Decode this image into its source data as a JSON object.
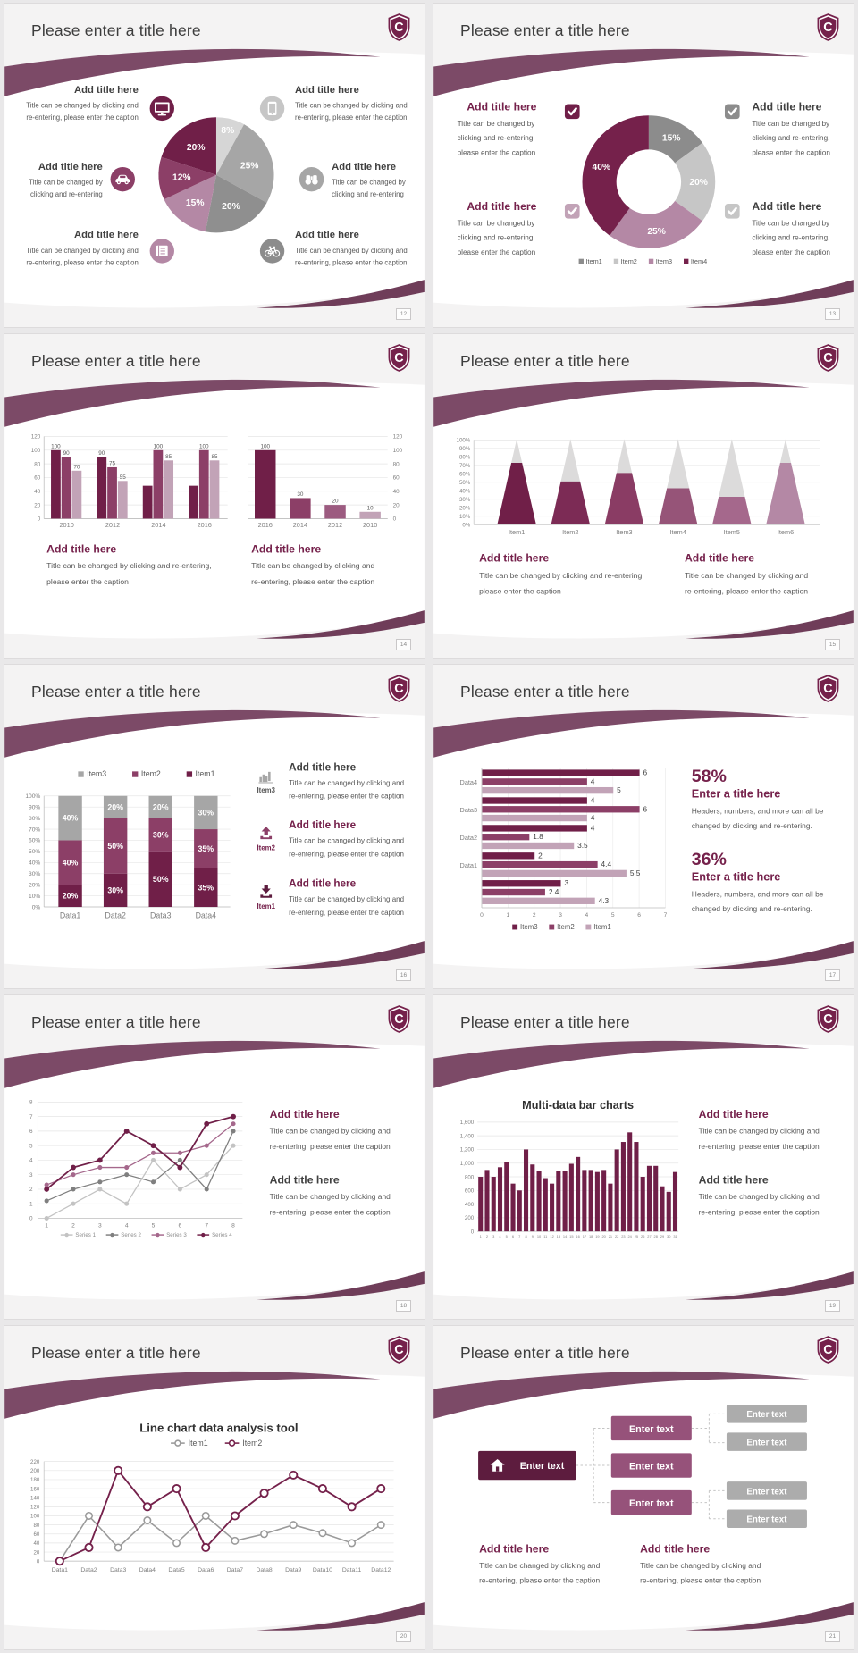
{
  "colors": {
    "accent_darkest": "#5d1c3e",
    "accent_dark": "#701f48",
    "accent": "#8c3f67",
    "accent_mid": "#a5688c",
    "accent_light": "#b488a5",
    "accent_xlight": "#c2a3b7",
    "heading_maroon": "#75214b",
    "swoosh_top": "#7c4a67",
    "swoosh_bottom": "#6f3d59",
    "gray_dark": "#8c8c8c",
    "gray": "#a6a6a6",
    "gray_light": "#c6c6c6",
    "gray_xlight": "#d6d6d6",
    "diagram_gray_box": "#acacac",
    "title_text": "#3d3d3d",
    "heading_dark": "#404040",
    "caption_text": "#595959",
    "axis_text": "#7f7f7f"
  },
  "logo": {
    "letter": "C"
  },
  "slides": [
    {
      "title": "Please enter a title here",
      "page_number": "12",
      "type": "pie-callouts",
      "chart": "pie12",
      "callouts": [
        {
          "heading": "Add title here",
          "icon": "monitor-icon",
          "caption": [
            "Title can be changed by clicking and",
            "re-entering, please enter the caption"
          ]
        },
        {
          "heading": "Add title here",
          "icon": "car-icon",
          "caption": [
            "Title can be changed by",
            "clicking and re-entering"
          ]
        },
        {
          "heading": "Add title here",
          "icon": "book-icon",
          "caption": [
            "Title can be changed by clicking and",
            "re-entering, please enter the caption"
          ]
        },
        {
          "heading": "Add title here",
          "icon": "smartphone-icon",
          "caption": [
            "Title can be changed by clicking and",
            "re-entering, please enter the caption"
          ]
        },
        {
          "heading": "Add title here",
          "icon": "binoculars-icon",
          "caption": [
            "Title can be changed by",
            "clicking and re-entering"
          ]
        },
        {
          "heading": "Add title here",
          "icon": "bicycle-icon",
          "caption": [
            "Title can be changed by clicking and",
            "re-entering, please enter the caption"
          ]
        }
      ]
    },
    {
      "title": "Please enter a title here",
      "page_number": "13",
      "type": "donut-callouts",
      "chart": "donut13",
      "callouts": [
        {
          "heading": "Add title here",
          "side": "left",
          "checkbox_color": "#701f48",
          "caption": [
            "Title can be changed by",
            "clicking and re-entering,",
            "please enter the caption"
          ]
        },
        {
          "heading": "Add title here",
          "side": "left",
          "checkbox_color": "#c2a3b7",
          "caption": [
            "Title can be changed by",
            "clicking and re-entering,",
            "please enter the caption"
          ]
        },
        {
          "heading": "Add title here",
          "side": "right",
          "checkbox_color": "#8c8c8c",
          "caption": [
            "Title can be changed by",
            "clicking and re-entering,",
            "please enter the caption"
          ]
        },
        {
          "heading": "Add title here",
          "side": "right",
          "checkbox_color": "#c6c6c6",
          "caption": [
            "Title can be changed by",
            "clicking and re-entering,",
            "please enter the caption"
          ]
        }
      ]
    },
    {
      "title": "Please enter a title here",
      "page_number": "14",
      "type": "two-bars",
      "charts": [
        "bars14a",
        "bars14b"
      ],
      "blocks": [
        {
          "heading": "Add title here",
          "caption": [
            "Title can be changed by clicking and re-entering,",
            "please enter the caption"
          ]
        },
        {
          "heading": "Add title here",
          "caption": [
            "Title can be changed by clicking and",
            "re-entering, please enter the caption"
          ]
        }
      ]
    },
    {
      "title": "Please enter a title here",
      "page_number": "15",
      "type": "cones",
      "chart": "cones15",
      "blocks": [
        {
          "heading": "Add title here",
          "caption": [
            "Title can be changed by clicking and re-entering,",
            "please enter the caption"
          ]
        },
        {
          "heading": "Add title here",
          "caption": [
            "Title can be changed by clicking and",
            "re-entering, please enter the caption"
          ]
        }
      ]
    },
    {
      "title": "Please enter a title here",
      "page_number": "16",
      "type": "stacked",
      "chart": "stack16",
      "blocks": [
        {
          "item": "Item3",
          "icon": "bar-chart-icon",
          "heading": "Add title here",
          "heading_color": "dark",
          "caption": [
            "Title can be changed by clicking and",
            "re-entering, please enter the caption"
          ]
        },
        {
          "item": "Item2",
          "icon": "upload-icon",
          "heading": "Add title here",
          "heading_color": "maroon",
          "caption": [
            "Title can be changed by clicking and",
            "re-entering, please enter the caption"
          ]
        },
        {
          "item": "Item1",
          "icon": "download-icon",
          "heading": "Add title here",
          "heading_color": "maroon",
          "caption": [
            "Title can be changed by clicking and",
            "re-entering, please enter the caption"
          ]
        }
      ]
    },
    {
      "title": "Please enter a title here",
      "page_number": "17",
      "type": "hbars",
      "chart": "hbar17",
      "stats": [
        {
          "value": "58%",
          "heading": "Enter a title here",
          "caption": [
            "Headers, numbers, and more can all be",
            "changed by clicking and re-entering."
          ]
        },
        {
          "value": "36%",
          "heading": "Enter a title here",
          "caption": [
            "Headers, numbers, and more can all be",
            "changed by clicking and re-entering."
          ]
        }
      ]
    },
    {
      "title": "Please enter a title here",
      "page_number": "18",
      "type": "lines",
      "chart": "line18",
      "blocks": [
        {
          "heading": "Add title here",
          "heading_color": "maroon",
          "caption": [
            "Title can be changed by clicking and",
            "re-entering, please enter the caption"
          ]
        },
        {
          "heading": "Add title here",
          "heading_color": "dark",
          "caption": [
            "Title can be changed by clicking and",
            "re-entering, please enter the caption"
          ]
        }
      ]
    },
    {
      "title": "Please enter a title here",
      "page_number": "19",
      "type": "multibar",
      "chart": "bars19",
      "blocks": [
        {
          "heading": "Add title here",
          "heading_color": "maroon",
          "caption": [
            "Title can be changed by clicking and",
            "re-entering, please enter the caption"
          ]
        },
        {
          "heading": "Add title here",
          "heading_color": "dark",
          "caption": [
            "Title can be changed by clicking and",
            "re-entering, please enter the caption"
          ]
        }
      ]
    },
    {
      "title": "Please enter a title here",
      "page_number": "20",
      "type": "bigline",
      "chart": "line20"
    },
    {
      "title": "Please enter a title here",
      "page_number": "21",
      "type": "diagram",
      "diagram": {
        "root": {
          "label": "Enter text",
          "icon": "home-icon"
        },
        "mid": [
          {
            "label": "Enter text"
          },
          {
            "label": "Enter text"
          },
          {
            "label": "Enter text"
          }
        ],
        "leaves": [
          {
            "label": "Enter text"
          },
          {
            "label": "Enter text"
          },
          {
            "label": "Enter text"
          },
          {
            "label": "Enter text"
          }
        ]
      },
      "blocks": [
        {
          "heading": "Add title here",
          "caption": [
            "Title can be changed by clicking and",
            "re-entering, please enter the caption"
          ]
        },
        {
          "heading": "Add title here",
          "caption": [
            "Title can be changed by clicking and",
            "re-entering, please enter the caption"
          ]
        }
      ]
    }
  ],
  "chart_data": [
    {
      "id": "pie12",
      "type": "pie",
      "values": [
        8,
        25,
        20,
        15,
        12,
        20
      ],
      "labels": [
        "8%",
        "25%",
        "20%",
        "15%",
        "12%",
        "20%"
      ],
      "colors": [
        "#d6d6d6",
        "#a6a6a6",
        "#8f8f8f",
        "#b488a5",
        "#8c3f67",
        "#701f48"
      ],
      "start": "top",
      "clockwise": true
    },
    {
      "id": "donut13",
      "type": "pie",
      "donut": true,
      "values": [
        15,
        20,
        25,
        40
      ],
      "labels": [
        "15%",
        "20%",
        "25%",
        "40%"
      ],
      "colors": [
        "#8c8c8c",
        "#c6c6c6",
        "#b488a5",
        "#75214b"
      ],
      "legend": [
        "Item1",
        "Item2",
        "Item3",
        "Item4"
      ],
      "legend_position": "bottom"
    },
    {
      "id": "bars14a",
      "type": "bar",
      "categories": [
        "2010",
        "2012",
        "2014",
        "2016"
      ],
      "series": [
        {
          "name": "Series1",
          "color": "#701f48",
          "values": [
            100,
            90,
            48,
            48
          ],
          "labels": [
            "100",
            "90",
            "",
            ""
          ]
        },
        {
          "name": "Series2",
          "color": "#8c3f67",
          "values": [
            90,
            75,
            100,
            100
          ],
          "labels": [
            "90",
            "75",
            "100",
            "100"
          ]
        },
        {
          "name": "Series3",
          "color": "#c2a3b7",
          "values": [
            70,
            55,
            85,
            85
          ],
          "labels": [
            "70",
            "55",
            "85",
            "85"
          ]
        }
      ],
      "ylim": [
        0,
        120
      ],
      "ytick_step": 20,
      "axis_side": "left",
      "grid": true
    },
    {
      "id": "bars14b",
      "type": "bar",
      "categories": [
        "2016",
        "2014",
        "2012",
        "2010"
      ],
      "series": [
        {
          "name": "Series1",
          "colors": [
            "#701f48",
            "#8c3f67",
            "#9c5b80",
            "#c2a3b7"
          ],
          "values": [
            100,
            30,
            20,
            10
          ],
          "labels": [
            "100",
            "30",
            "20",
            "10"
          ]
        }
      ],
      "ylim": [
        0,
        120
      ],
      "ytick_step": 20,
      "axis_side": "right",
      "grid": true
    },
    {
      "id": "cones15",
      "type": "cone",
      "categories": [
        "Item1",
        "Item2",
        "Item3",
        "Item4",
        "Item5",
        "Item6"
      ],
      "values": [
        72,
        50,
        60,
        42,
        32,
        72
      ],
      "colors": [
        "#701f48",
        "#7c2b55",
        "#8a3c64",
        "#965478",
        "#a5688c",
        "#b488a5"
      ],
      "unfilled_color": "#dcdbdb",
      "ylim": [
        0,
        100
      ],
      "ytick_step": 10,
      "grid": true
    },
    {
      "id": "stack16",
      "type": "stacked-bar",
      "categories": [
        "Data1",
        "Data2",
        "Data3",
        "Data4"
      ],
      "series": [
        {
          "name": "Item1",
          "color": "#701f48",
          "values": [
            20,
            30,
            50,
            35
          ]
        },
        {
          "name": "Item2",
          "color": "#8c3f67",
          "values": [
            40,
            50,
            30,
            35
          ]
        },
        {
          "name": "Item3",
          "color": "#a6a6a6",
          "values": [
            40,
            20,
            20,
            30
          ]
        }
      ],
      "legend_order": [
        "Item3",
        "Item2",
        "Item1"
      ],
      "ylim": [
        0,
        100
      ],
      "ytick_step": 10,
      "grid": true
    },
    {
      "id": "hbar17",
      "type": "hbar",
      "groups": [
        {
          "label": "Data4",
          "values": [
            6,
            4,
            5
          ]
        },
        {
          "label": "Data3",
          "values": [
            4,
            6,
            4
          ]
        },
        {
          "label": "Data2",
          "values": [
            4,
            1.8,
            3.5
          ]
        },
        {
          "label": "Data1",
          "values": [
            2,
            4.4,
            5.5
          ]
        },
        {
          "label": "",
          "values": [
            3,
            2.4,
            4.3
          ]
        }
      ],
      "series": [
        "Item3",
        "Item2",
        "Item1"
      ],
      "series_colors": [
        "#701f48",
        "#8c3f67",
        "#c2a3b7"
      ],
      "xlim": [
        0,
        7
      ],
      "xtick_step": 1,
      "grid": true,
      "legend_position": "bottom"
    },
    {
      "id": "line18",
      "type": "line",
      "x": [
        1,
        2,
        3,
        4,
        5,
        6,
        7,
        8
      ],
      "series": [
        {
          "name": "Series 1",
          "color": "#c3c3c3",
          "values": [
            0,
            1,
            2,
            1,
            4,
            2,
            3,
            5
          ]
        },
        {
          "name": "Series 2",
          "color": "#7f7f7f",
          "values": [
            1.2,
            2,
            2.5,
            3,
            2.5,
            4,
            2,
            6
          ]
        },
        {
          "name": "Series 3",
          "color": "#a5688c",
          "values": [
            2.3,
            3,
            3.5,
            3.5,
            4.5,
            4.5,
            5,
            6.5
          ]
        },
        {
          "name": "Series 4",
          "color": "#701f48",
          "values": [
            2,
            3.5,
            4,
            6,
            5,
            3.5,
            6.5,
            7
          ]
        }
      ],
      "ylim": [
        0,
        8
      ],
      "ytick_step": 1,
      "grid": true,
      "legend_position": "bottom"
    },
    {
      "id": "bars19",
      "type": "bar",
      "title": "Multi-data bar charts",
      "categories": [
        "1",
        "2",
        "3",
        "4",
        "5",
        "6",
        "7",
        "8",
        "9",
        "10",
        "11",
        "12",
        "13",
        "14",
        "15",
        "16",
        "17",
        "18",
        "19",
        "20",
        "21",
        "22",
        "23",
        "24",
        "25",
        "26",
        "27",
        "28",
        "29",
        "30",
        "31"
      ],
      "series": [
        {
          "name": "Data",
          "color": "#701f48",
          "values": [
            800,
            900,
            800,
            940,
            1020,
            700,
            600,
            1200,
            980,
            890,
            780,
            700,
            890,
            890,
            990,
            1090,
            900,
            900,
            870,
            900,
            700,
            1200,
            1310,
            1450,
            1310,
            800,
            960,
            960,
            660,
            580,
            870
          ]
        }
      ],
      "ylim": [
        0,
        1600
      ],
      "ytick_step": 200,
      "ytick_labels": [
        "0",
        "200",
        "400",
        "600",
        "800",
        "1,000",
        "1,200",
        "1,400",
        "1,600"
      ],
      "grid": true
    },
    {
      "id": "line20",
      "type": "line",
      "title": "Line chart data analysis tool",
      "x": [
        "Data1",
        "Data2",
        "Data3",
        "Data4",
        "Data5",
        "Data6",
        "Data7",
        "Data8",
        "Data9",
        "Data10",
        "Data11",
        "Data12"
      ],
      "series": [
        {
          "name": "Item1",
          "color": "#9a9a9a",
          "values": [
            0,
            100,
            30,
            90,
            40,
            100,
            45,
            60,
            80,
            62,
            40,
            80
          ]
        },
        {
          "name": "Item2",
          "color": "#75214b",
          "values": [
            0,
            30,
            200,
            120,
            160,
            30,
            100,
            150,
            190,
            160,
            120,
            160
          ]
        }
      ],
      "ylim": [
        0,
        220
      ],
      "ytick_step": 20,
      "grid": true,
      "open_markers": true,
      "legend_position": "top"
    }
  ]
}
